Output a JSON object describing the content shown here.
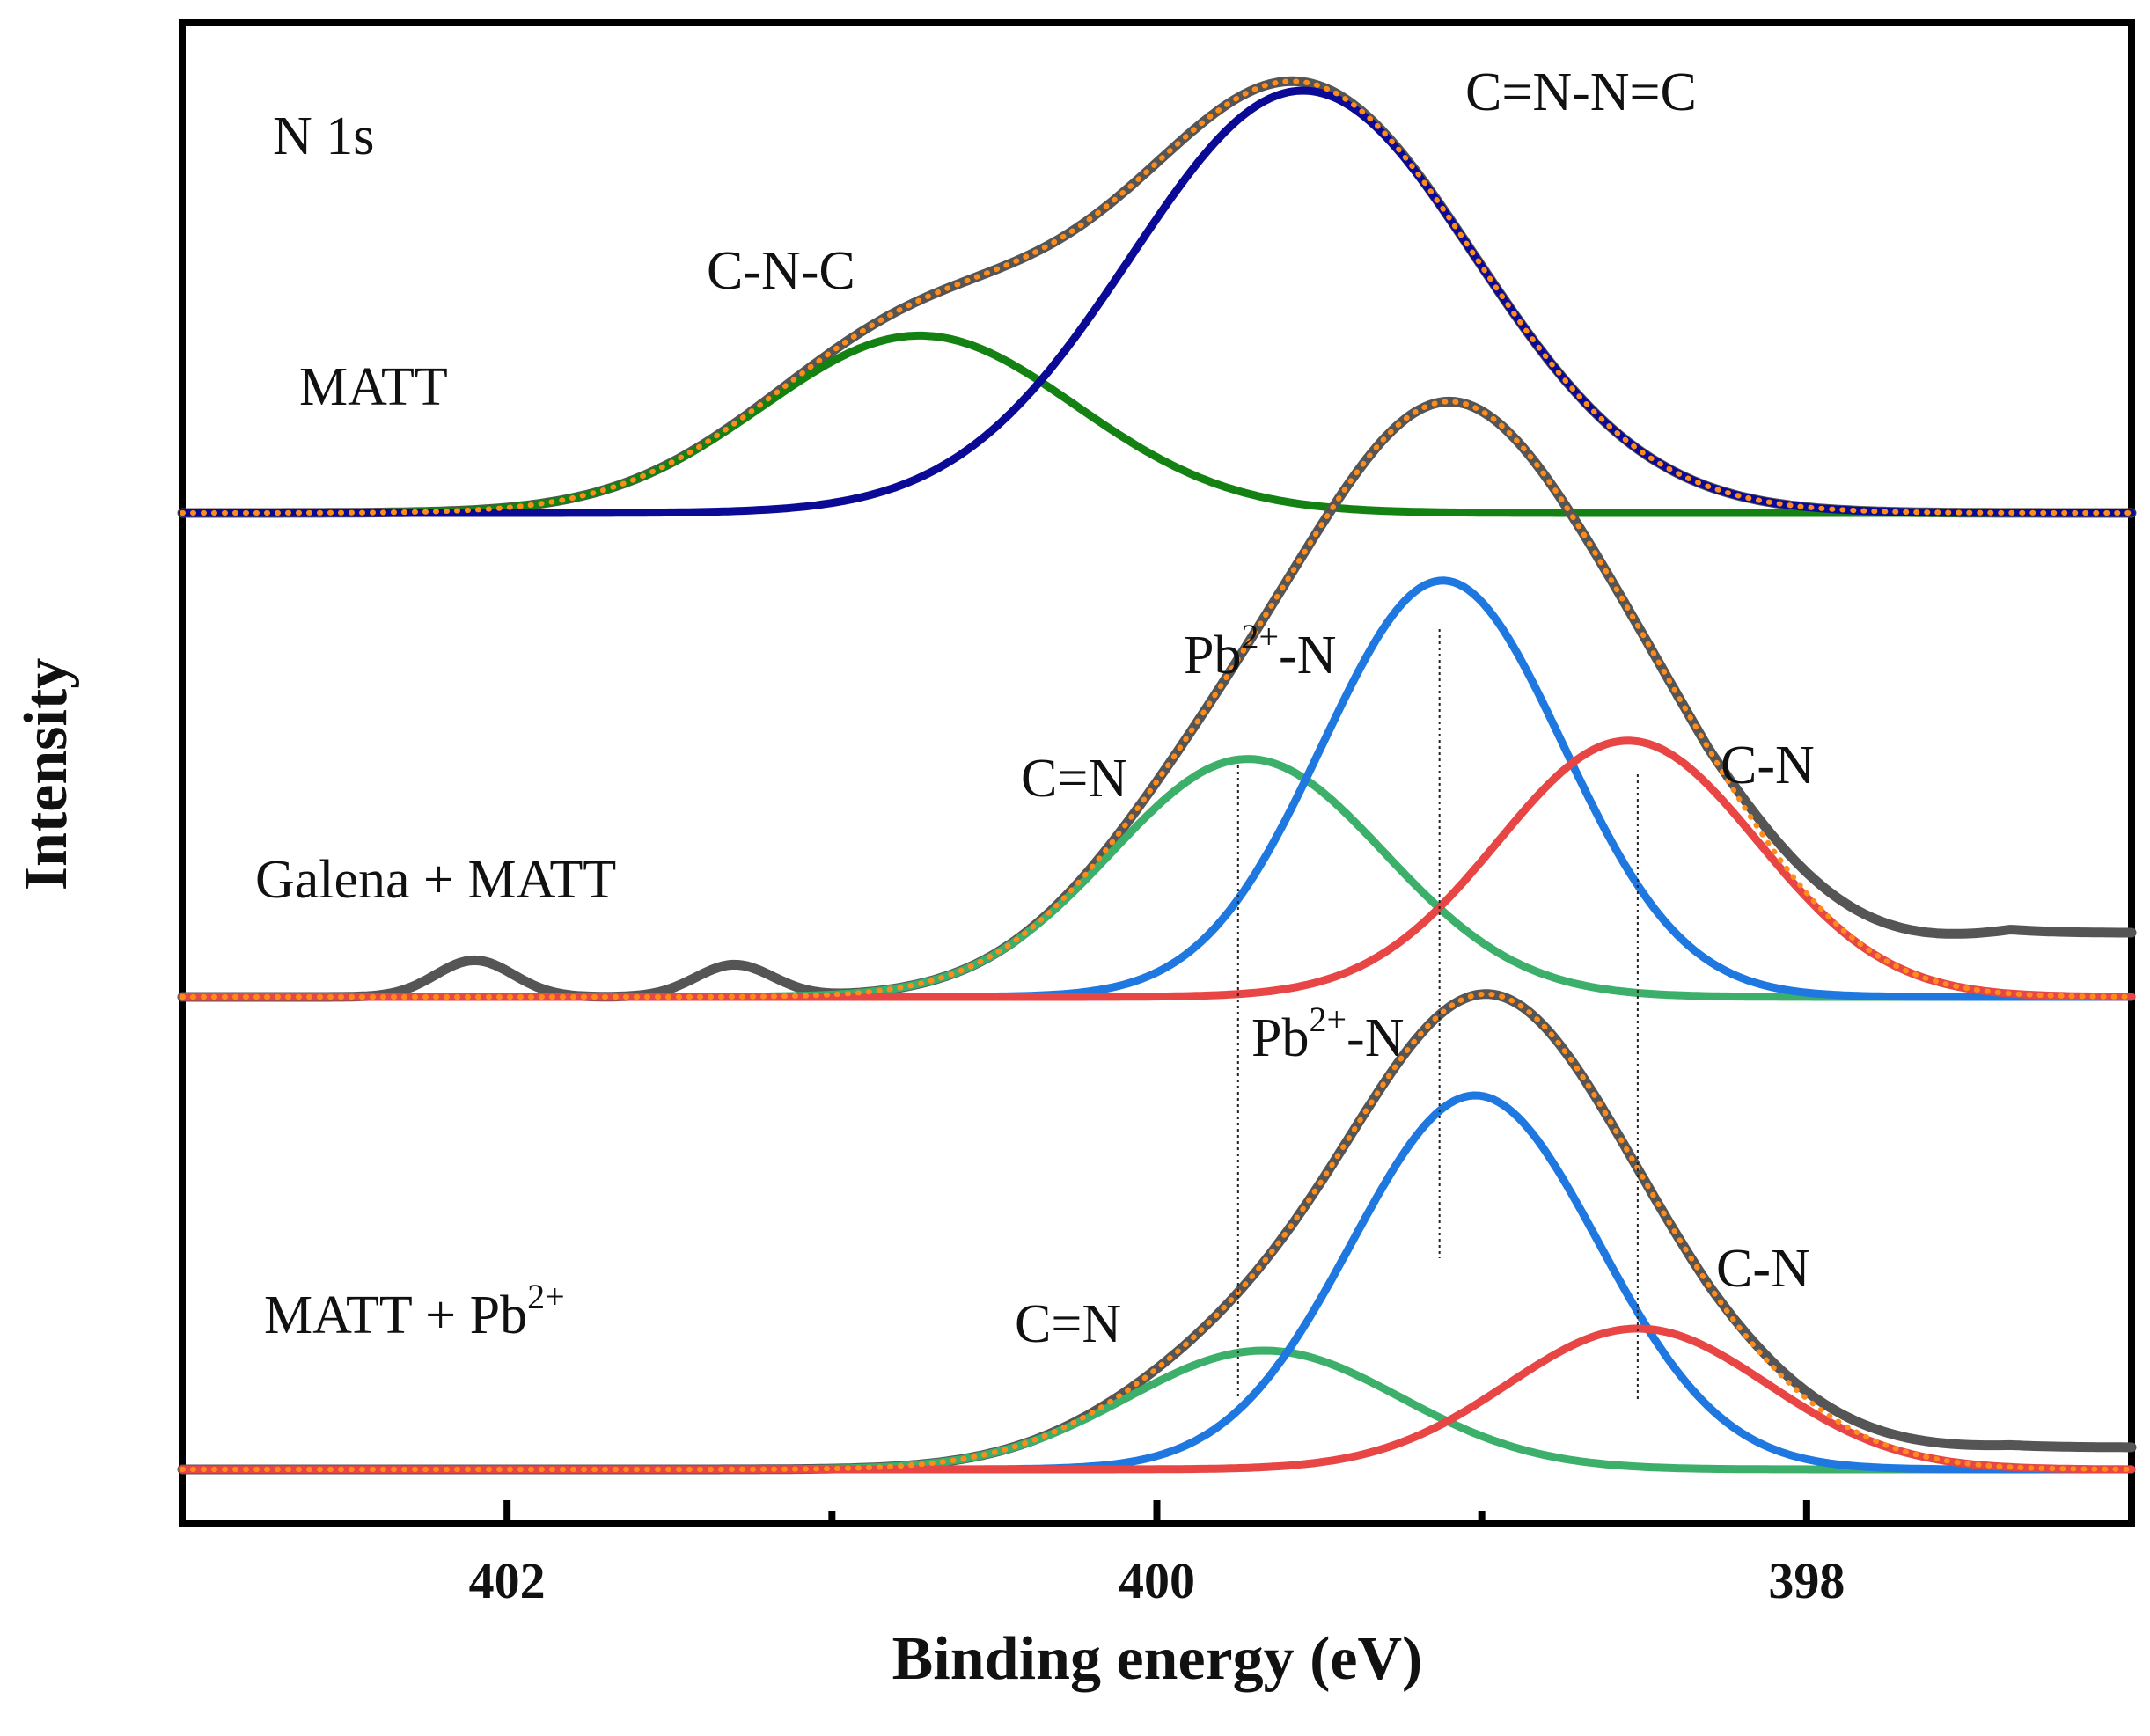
{
  "chart_data": {
    "type": "line",
    "title": "",
    "xlabel": "Binding energy (eV)",
    "ylabel": "Intensity",
    "xlim": [
      403.0,
      397.0
    ],
    "x_reversed": true,
    "xticks": [
      402,
      400,
      398
    ],
    "minor_xticks": [
      401,
      399
    ],
    "grid": false,
    "panels": [
      {
        "name": "MATT",
        "element_label": "N 1s",
        "baseline": 0,
        "curve_sampling": "x from 403.0 to 397.0 eV",
        "peaks": [
          {
            "label": "C-N-C",
            "center_ev": 400.73,
            "amplitude": 0.42,
            "sigma_ev": 0.48,
            "color": "#138213"
          },
          {
            "label": "C=N-N=C",
            "center_ev": 399.55,
            "amplitude": 1.0,
            "sigma_ev": 0.53,
            "color": "#0a0a96"
          }
        ],
        "raw_color": "#555555",
        "fit_color": "#ff8c1a"
      },
      {
        "name": "Galena + MATT",
        "baseline": 0,
        "peaks": [
          {
            "label": "C=N",
            "center_ev": 399.72,
            "amplitude": 0.52,
            "sigma_ev": 0.42,
            "color": "#3caf6a"
          },
          {
            "label": "Pb2+-N",
            "center_ev": 399.12,
            "amplitude": 0.91,
            "sigma_ev": 0.37,
            "color": "#1f78e0"
          },
          {
            "label": "C-N",
            "center_ev": 398.55,
            "amplitude": 0.56,
            "sigma_ev": 0.4,
            "color": "#e84545"
          }
        ],
        "raw_extra_tail_right": 0.14,
        "raw_bumps": [
          {
            "center_ev": 402.1,
            "height": 0.08
          },
          {
            "center_ev": 401.3,
            "height": 0.07
          }
        ],
        "raw_color": "#555555",
        "fit_color": "#ff8c1a"
      },
      {
        "name": "MATT + Pb2+",
        "baseline": 0,
        "peaks": [
          {
            "label": "C=N",
            "center_ev": 399.67,
            "amplitude": 0.27,
            "sigma_ev": 0.42,
            "color": "#3caf6a"
          },
          {
            "label": "Pb2+-N",
            "center_ev": 399.02,
            "amplitude": 0.85,
            "sigma_ev": 0.38,
            "color": "#1f78e0"
          },
          {
            "label": "C-N",
            "center_ev": 398.52,
            "amplitude": 0.32,
            "sigma_ev": 0.4,
            "color": "#e84545"
          }
        ],
        "raw_extra_tail_right": 0.05,
        "raw_color": "#555555",
        "fit_color": "#ff8c1a"
      }
    ],
    "reference_lines_ev": [
      399.75,
      399.13,
      398.52
    ]
  },
  "labels": {
    "n1s": "N 1s",
    "matt": "MATT",
    "cnc": "C-N-C",
    "cnnc": "C=N-N=C",
    "galena_matt": "Galena + MATT",
    "pb_prefix": "Pb",
    "pb_sup": "2+",
    "pb_suffix": "-N",
    "cn_double": "C=N",
    "cn_single": "C-N",
    "matt_pb_prefix": "MATT + Pb",
    "matt_pb_sup": "2+"
  }
}
